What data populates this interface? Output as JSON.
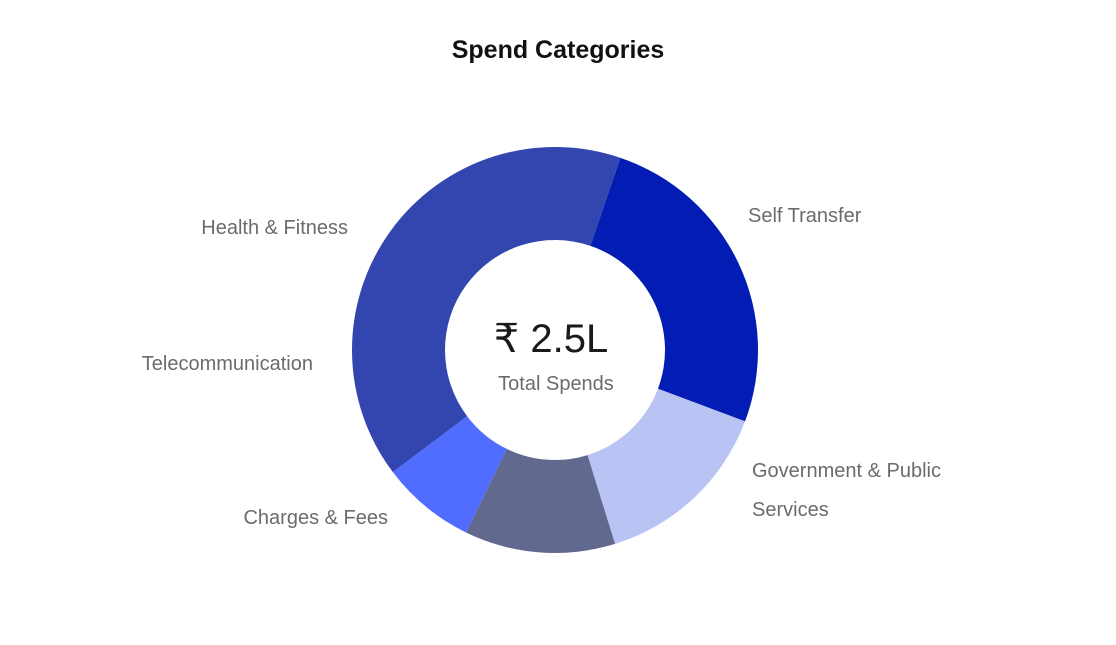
{
  "chart_data": {
    "type": "pie",
    "title": "Spend Categories",
    "center_value": "₹ 2.5L",
    "center_label": "Total Spends",
    "categories": [
      "Self Transfer",
      "Government & Public Services",
      "Charges & Fees",
      "Telecommunication",
      "Health & Fitness"
    ],
    "values": [
      40.5,
      25.5,
      14.5,
      12.0,
      7.5
    ],
    "colors": [
      "#3346b0",
      "#021cb4",
      "#b9c3f4",
      "#61698e",
      "#506dff"
    ],
    "legend": "none"
  }
}
